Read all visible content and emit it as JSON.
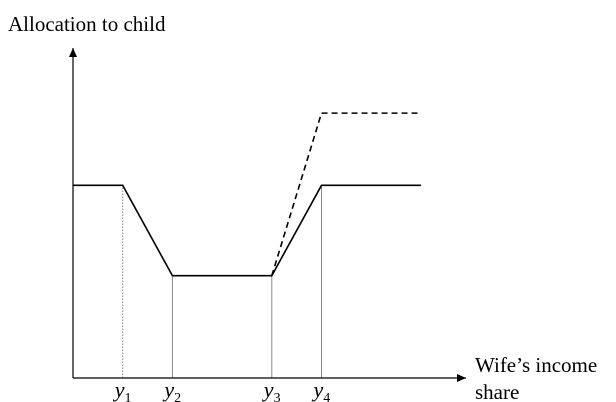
{
  "chart_data": {
    "type": "line",
    "title": "",
    "xlabel_line1": "Wife’s income",
    "xlabel_line2": "share",
    "ylabel": "Allocation to child",
    "x_ticks": [
      {
        "label": "y",
        "sub": "1",
        "x": 1
      },
      {
        "label": "y",
        "sub": "2",
        "x": 2
      },
      {
        "label": "y",
        "sub": "3",
        "x": 4
      },
      {
        "label": "y",
        "sub": "4",
        "x": 5
      }
    ],
    "xlim": [
      0,
      7
    ],
    "ylim": [
      0,
      5
    ],
    "series": [
      {
        "style": "solid",
        "x": [
          0,
          1,
          2,
          4,
          5,
          7
        ],
        "y": [
          3.2,
          3.2,
          1.7,
          1.7,
          3.2,
          3.2
        ]
      },
      {
        "style": "dashed",
        "x": [
          4,
          5,
          7
        ],
        "y": [
          1.7,
          4.4,
          4.4
        ]
      }
    ],
    "grid": false,
    "colors": {
      "series": "#000000",
      "axis": "#000000",
      "guide": "#888888"
    }
  }
}
